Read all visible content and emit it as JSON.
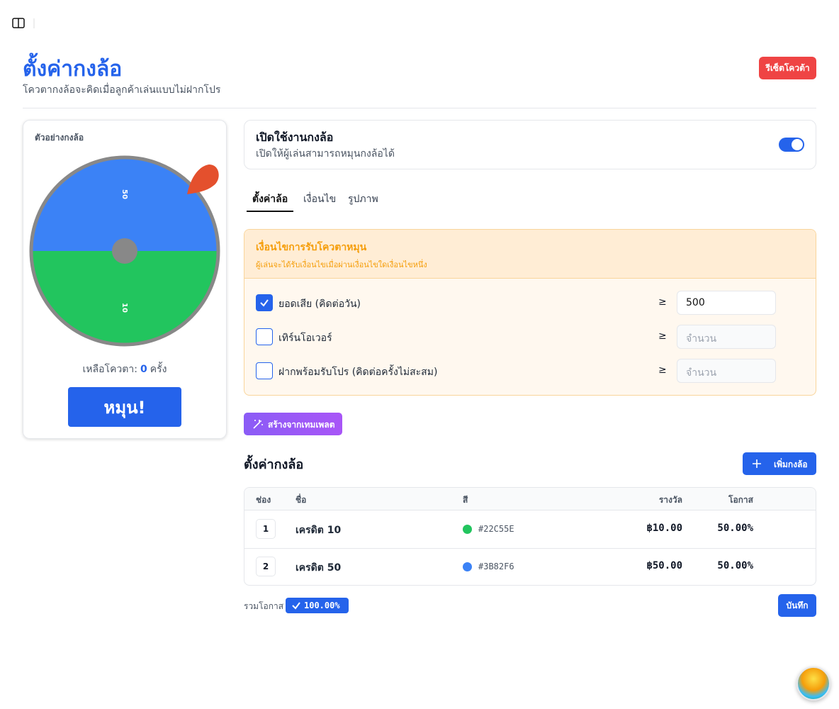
{
  "header": {
    "title": "ตั้งค่ากงล้อ",
    "subtitle": "โควตากงล้อจะคิดเมื่อลูกค้าเล่นแบบไม่ฝากโปร",
    "reset_button": "รีเซ็ตโควต้า"
  },
  "preview": {
    "title": "ตัวอย่างกงล้อ",
    "segments": [
      {
        "label": "50",
        "color": "#3B82F6"
      },
      {
        "label": "10",
        "color": "#22C55E"
      }
    ],
    "quota_label": "เหลือโควตา:",
    "quota_value": "0",
    "quota_unit": "ครั้ง",
    "spin_button": "หมุน!"
  },
  "toggle": {
    "title": "เปิดใช้งานกงล้อ",
    "description": "เปิดให้ผู้เล่นสามารถหมุนกงล้อได้",
    "enabled": true
  },
  "tabs": {
    "items": [
      "ตั้งค่าล้อ",
      "เงื่อนไข",
      "รูปภาพ"
    ],
    "active": 0
  },
  "conditions": {
    "title": "เงื่อนไขการรับโควตาหมุน",
    "subtitle": "ผู้เล่นจะได้รับเงื่อนไขเมื่อผ่านเงื่อนไขใดเงื่อนไขหนึ่ง",
    "rows": [
      {
        "label": "ยอดเสีย (คิดต่อวัน)",
        "checked": true,
        "operator": "≥",
        "value": "500"
      },
      {
        "label": "เทิร์นโอเวอร์",
        "checked": false,
        "operator": "≥",
        "placeholder": "จำนวน"
      },
      {
        "label": "ฝากพร้อมรับโปร (คิดต่อครั้งไม่สะสม)",
        "checked": false,
        "operator": "≥",
        "placeholder": "จำนวน"
      }
    ]
  },
  "template_button": "สร้างจากเทมเพลต",
  "segments": {
    "title": "ตั้งค่ากงล้อ",
    "add_button": "เพิ่มกงล้อ",
    "columns": [
      "ช่อง",
      "ชื่อ",
      "สี",
      "รางวัล",
      "โอกาส"
    ],
    "rows": [
      [
        "1",
        "เครดิต 10",
        "#22C55E",
        "฿10.00",
        "50.00%"
      ],
      [
        "2",
        "เครดิต 50",
        "#3B82F6",
        "฿50.00",
        "50.00%"
      ]
    ]
  },
  "footer": {
    "total_label": "รวมโอกาส",
    "total_value": "100.00%",
    "save_button": "บันทึก"
  }
}
